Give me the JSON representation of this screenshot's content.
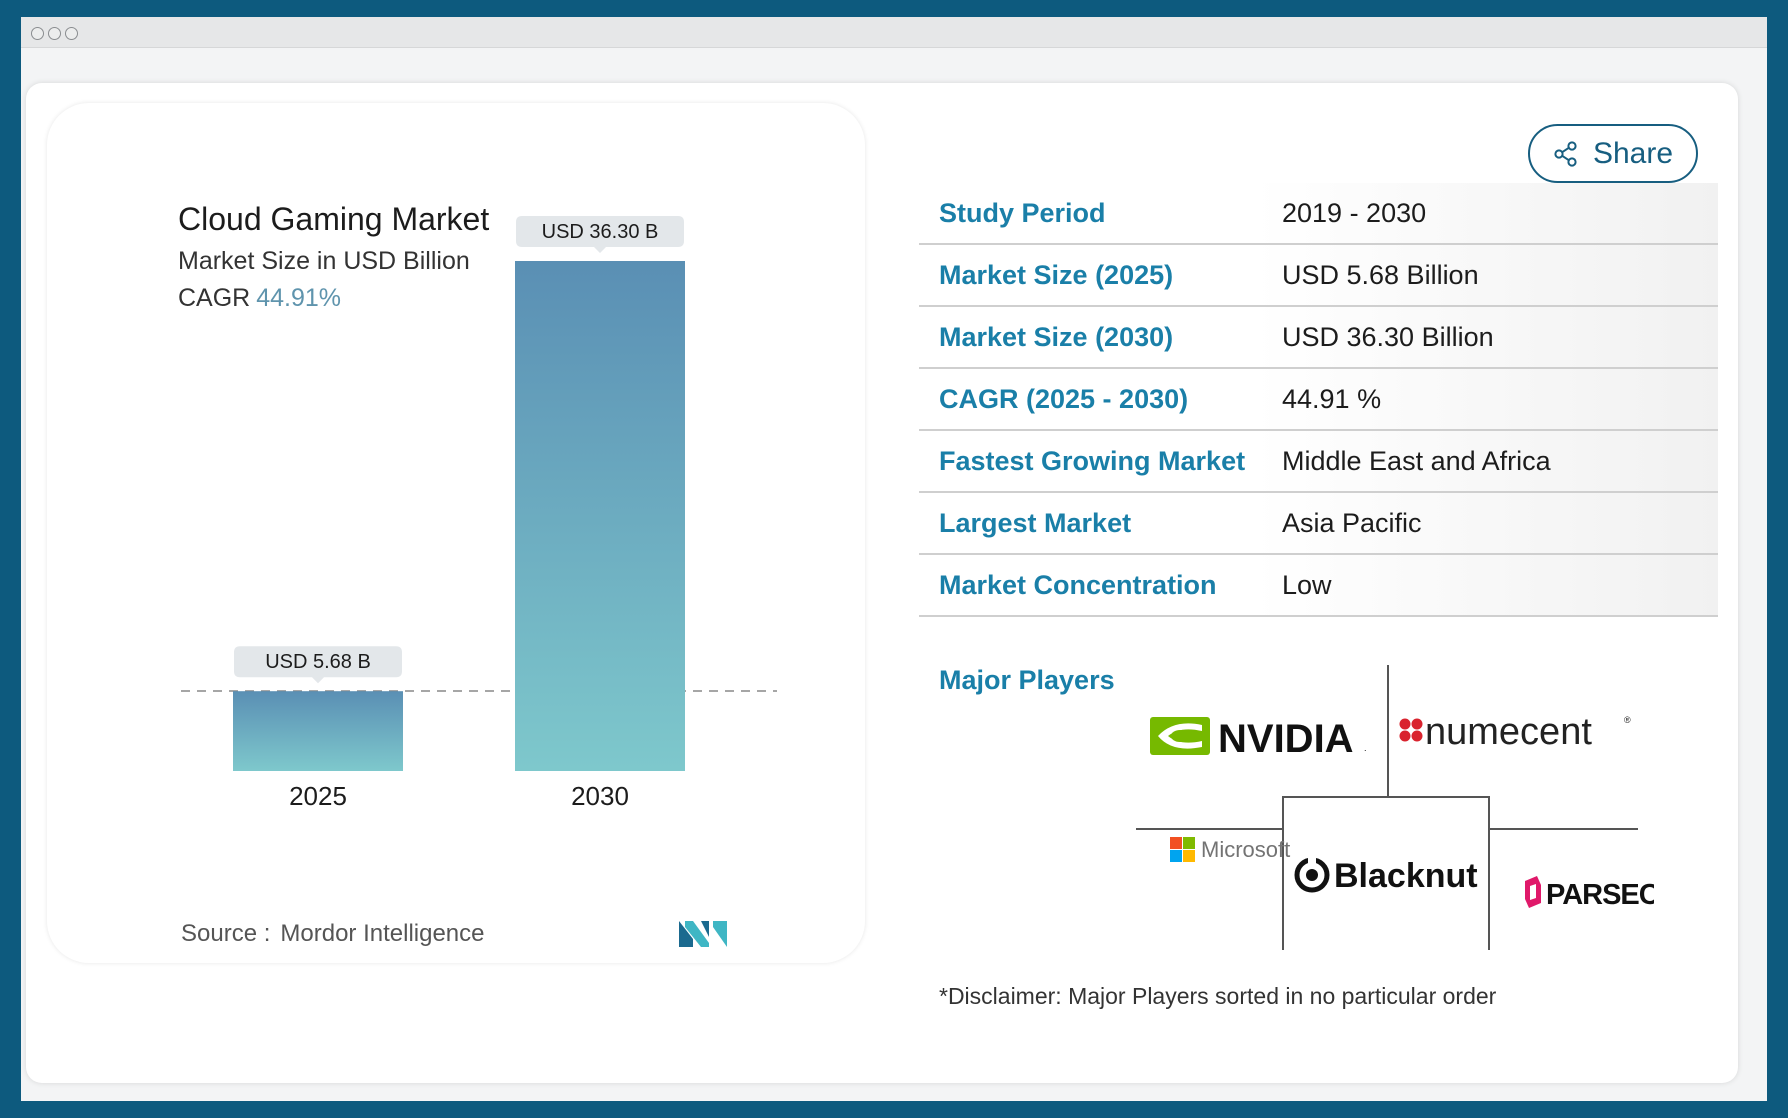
{
  "window": {
    "controls": [
      "dot-1",
      "dot-2",
      "dot-3"
    ]
  },
  "chart": {
    "title": "Cloud Gaming Market",
    "subtitle": "Market Size in USD Billion",
    "cagr_label": "CAGR",
    "cagr_value": "44.91%",
    "source_label": "Source :",
    "source_value": "Mordor Intelligence",
    "colors": {
      "bar_top": "#5a8fb4",
      "bar_bottom": "#7ec8cc",
      "label_bg": "#e3e7ea"
    }
  },
  "chart_data": {
    "type": "bar",
    "categories": [
      "2025",
      "2030"
    ],
    "values": [
      5.68,
      36.3
    ],
    "data_labels": [
      "USD 5.68 B",
      "USD 36.30 B"
    ],
    "title": "Cloud Gaming Market",
    "subtitle": "Market Size in USD Billion",
    "ylim": [
      0,
      36.3
    ]
  },
  "share": {
    "label": "Share"
  },
  "info_rows": [
    {
      "label": "Study Period",
      "value": "2019 - 2030"
    },
    {
      "label": "Market Size (2025)",
      "value": "USD 5.68 Billion"
    },
    {
      "label": "Market Size (2030)",
      "value": "USD 36.30 Billion"
    },
    {
      "label": "CAGR (2025 - 2030)",
      "value": "44.91 %"
    },
    {
      "label": "Fastest Growing Market",
      "value": "Middle East and Africa"
    },
    {
      "label": "Largest Market",
      "value": "Asia Pacific"
    },
    {
      "label": "Market Concentration",
      "value": "Low"
    }
  ],
  "players": {
    "title": "Major Players",
    "logos": [
      {
        "name": "NVIDIA",
        "color": "#76b900"
      },
      {
        "name": "numecent",
        "color": "#d9232e"
      },
      {
        "name": "Microsoft",
        "color": "#737373"
      },
      {
        "name": "Blacknut",
        "color": "#111111"
      },
      {
        "name": "PARSEC",
        "color": "#e0196a"
      }
    ]
  },
  "disclaimer": "*Disclaimer: Major Players sorted in no particular order"
}
